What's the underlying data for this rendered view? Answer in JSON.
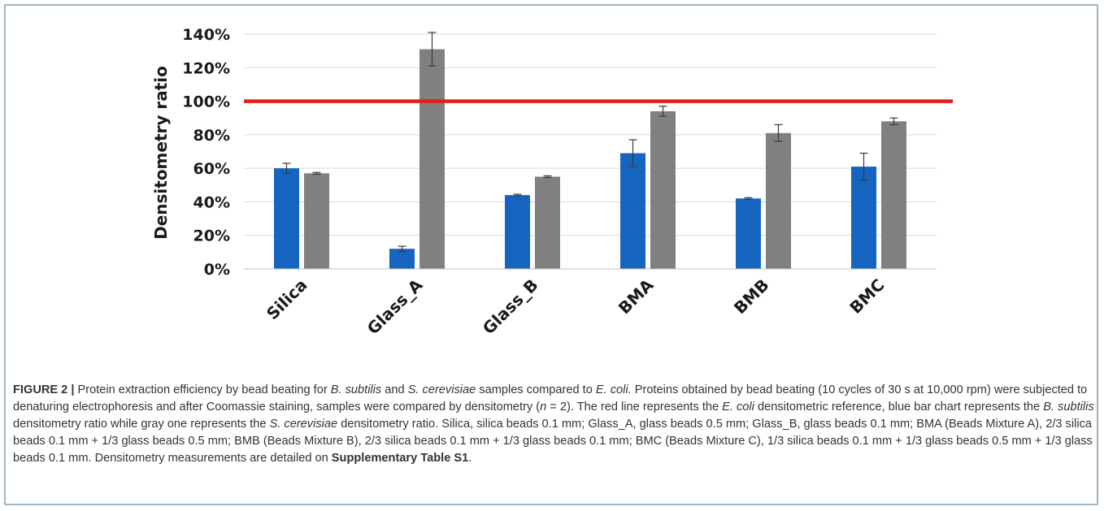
{
  "chart_data": {
    "type": "bar",
    "categories": [
      "Silica",
      "Glass_A",
      "Glass_B",
      "BMA",
      "BMB",
      "BMC"
    ],
    "series": [
      {
        "values": [
          60,
          12,
          44,
          69,
          42,
          61
        ],
        "errors": [
          3,
          1.5,
          0.5,
          8,
          0.5,
          8
        ],
        "color": "#1565c0"
      },
      {
        "values": [
          57,
          131,
          55,
          94,
          81,
          88
        ],
        "errors": [
          0.5,
          10,
          0.5,
          3,
          5,
          2
        ],
        "color": "#808080"
      }
    ],
    "reference_line": {
      "value": 100,
      "color": "#e0201a"
    },
    "title": "",
    "xlabel": "",
    "ylabel": "Densitometry ratio",
    "ylim": [
      0,
      140
    ],
    "yticks": [
      "0%",
      "20%",
      "40%",
      "60%",
      "80%",
      "100%",
      "120%",
      "140%"
    ],
    "grid": true,
    "legend": "none"
  },
  "caption": {
    "label": "FIGURE 2 |",
    "segments": [
      {
        "t": " Protein extraction efficiency by bead beating for ",
        "s": "n"
      },
      {
        "t": "B. subtilis",
        "s": "i"
      },
      {
        "t": " and ",
        "s": "n"
      },
      {
        "t": "S. cerevisiae",
        "s": "i"
      },
      {
        "t": " samples compared to ",
        "s": "n"
      },
      {
        "t": "E. coli.",
        "s": "i"
      },
      {
        "t": " Proteins obtained by bead beating (10 cycles of 30 s at 10,000 rpm) were subjected to denaturing electrophoresis and after Coomassie staining, samples were compared by densitometry (",
        "s": "n"
      },
      {
        "t": "n",
        "s": "i"
      },
      {
        "t": " = 2). The red line represents the ",
        "s": "n"
      },
      {
        "t": "E. coli",
        "s": "i"
      },
      {
        "t": " densitometric reference, blue bar chart represents the ",
        "s": "n"
      },
      {
        "t": "B. subtilis",
        "s": "i"
      },
      {
        "t": " densitometry ratio while gray one represents the ",
        "s": "n"
      },
      {
        "t": "S. cerevisiae",
        "s": "i"
      },
      {
        "t": " densitometry ratio. Silica, silica beads 0.1 mm; Glass_A, glass beads 0.5 mm; Glass_B, glass beads 0.1 mm; BMA (Beads Mixture A), 2/3 silica beads 0.1 mm + 1/3 glass beads 0.5 mm; BMB (Beads Mixture B), 2/3 silica beads 0.1 mm + 1/3 glass beads 0.1 mm; BMC (Beads Mixture C), 1/3 silica beads 0.1 mm + 1/3 glass beads 0.5 mm + 1/3 glass beads 0.1 mm. Densitometry measurements are detailed on ",
        "s": "n"
      },
      {
        "t": "Supplementary Table S1",
        "s": "b"
      },
      {
        "t": ".",
        "s": "n"
      }
    ]
  }
}
